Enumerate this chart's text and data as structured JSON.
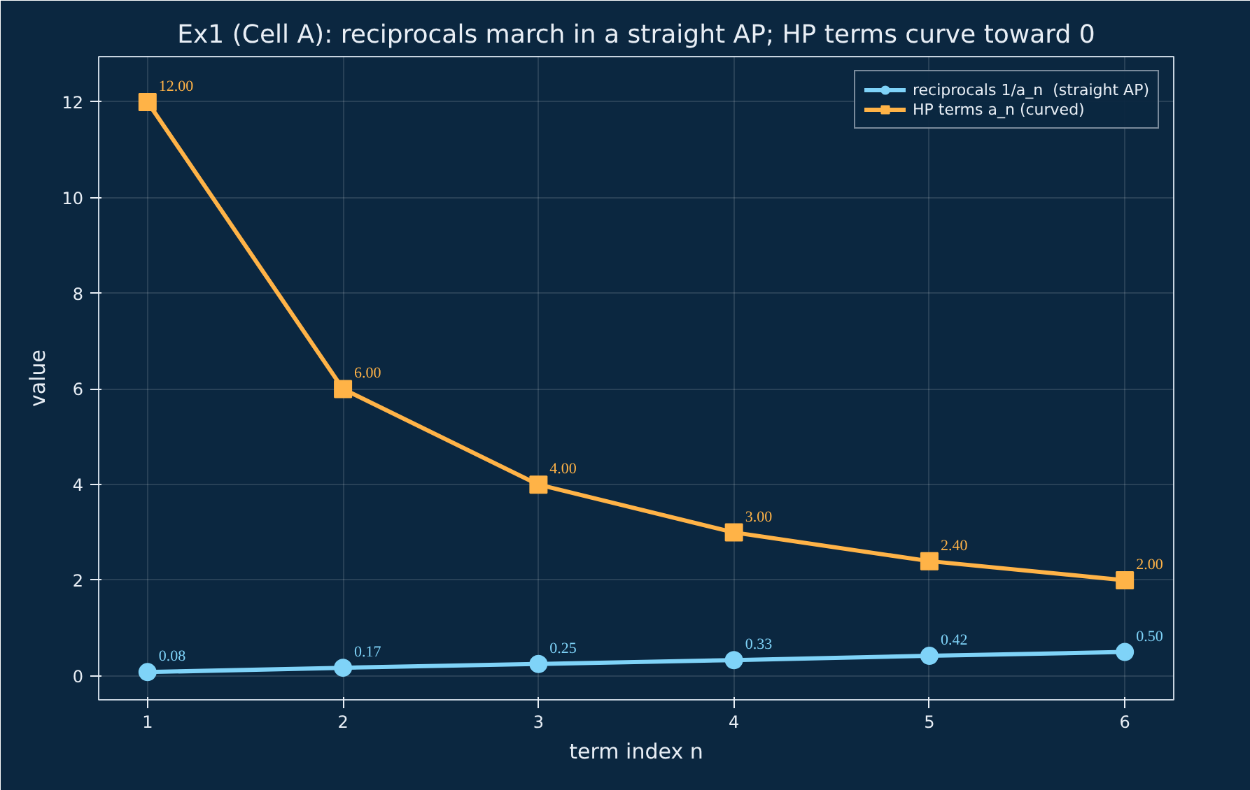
{
  "chart_data": {
    "type": "line",
    "title": "Ex1 (Cell A): reciprocals march in a straight AP; HP terms curve toward 0",
    "xlabel": "term index n",
    "ylabel": "value",
    "x": [
      1,
      2,
      3,
      4,
      5,
      6
    ],
    "xlim": [
      0.75,
      6.25
    ],
    "xticks": [
      1,
      2,
      3,
      4,
      5,
      6
    ],
    "ylim": [
      -0.5,
      12.95
    ],
    "yticks": [
      0,
      2,
      4,
      6,
      8,
      10,
      12
    ],
    "grid": true,
    "legend": "top right",
    "line_style": "solid",
    "series": [
      {
        "name": "reciprocals 1/a_n  (straight AP)",
        "color": "#7fd3f8",
        "marker": "circle",
        "values": [
          0.08,
          0.17,
          0.25,
          0.33,
          0.42,
          0.5
        ],
        "value_labels": [
          "0.08",
          "0.17",
          "0.25",
          "0.33",
          "0.42",
          "0.50"
        ]
      },
      {
        "name": "HP terms a_n (curved)",
        "color": "#ffb347",
        "marker": "square",
        "values": [
          12,
          6,
          4,
          3,
          2.4,
          2
        ],
        "value_labels": [
          "12.00",
          "6.00",
          "4.00",
          "3.00",
          "2.40",
          "2.00"
        ]
      }
    ]
  }
}
